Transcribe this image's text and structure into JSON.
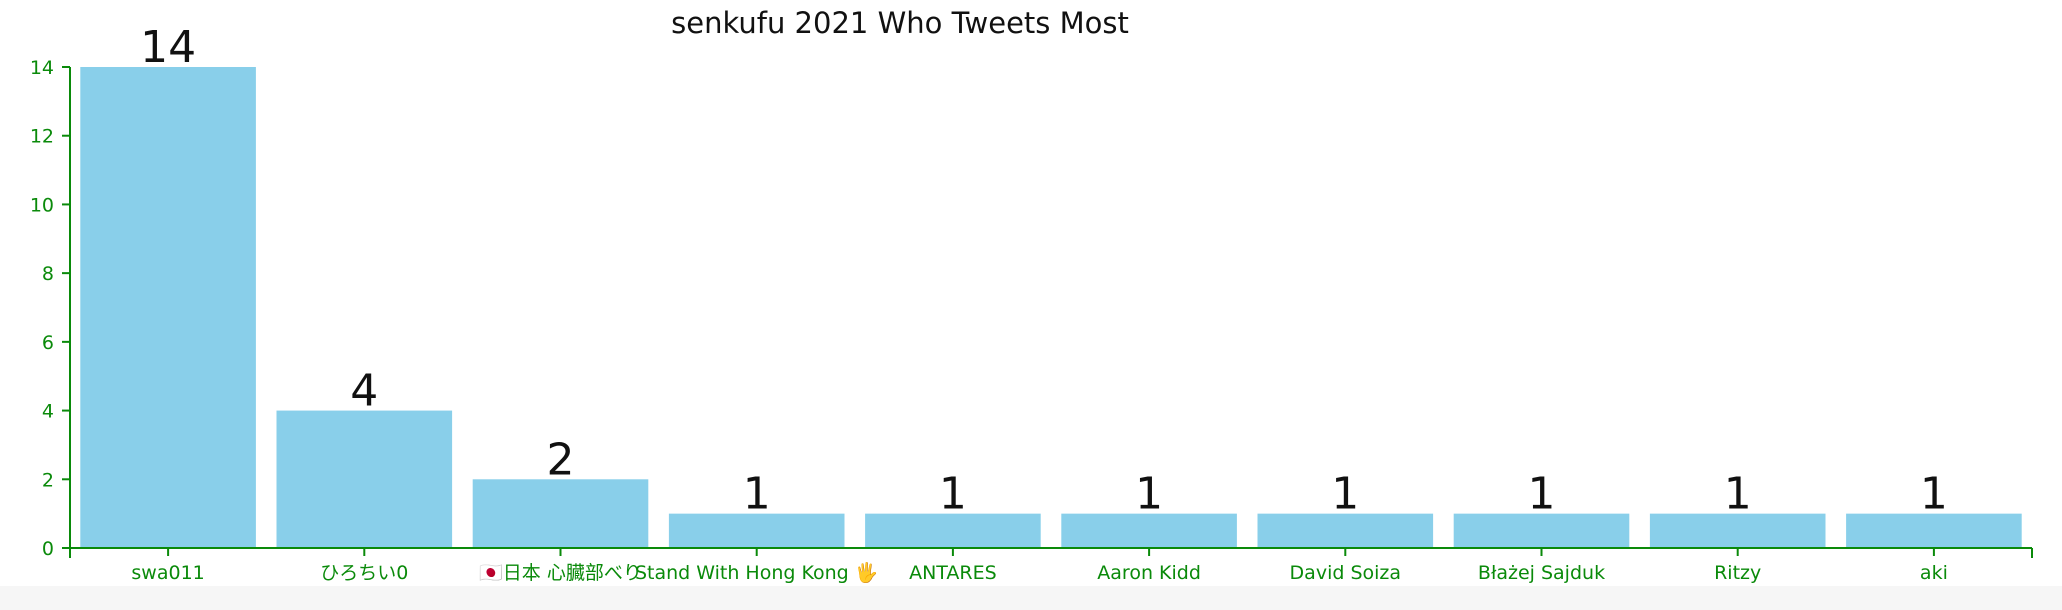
{
  "chart_data": {
    "type": "bar",
    "title": "senkufu 2021 Who Tweets Most",
    "xlabel": "",
    "ylabel": "",
    "categories": [
      "swa011",
      "ひろちい0",
      "🇯🇵日本 心臓部べり",
      "Stand With Hong Kong 🖐",
      "ANTARES",
      "Aaron Kidd",
      "David Soiza",
      "Błażej Sajduk",
      "Ritzy",
      "aki"
    ],
    "values": [
      14,
      4,
      2,
      1,
      1,
      1,
      1,
      1,
      1,
      1
    ],
    "ylim": [
      0,
      14
    ],
    "yticks": [
      0,
      2,
      4,
      6,
      8,
      10,
      12,
      14
    ],
    "grid": false,
    "legend": "none"
  },
  "colors": {
    "bar": "#89cfea",
    "axis": "#0a8a0a",
    "text": "#111111"
  }
}
